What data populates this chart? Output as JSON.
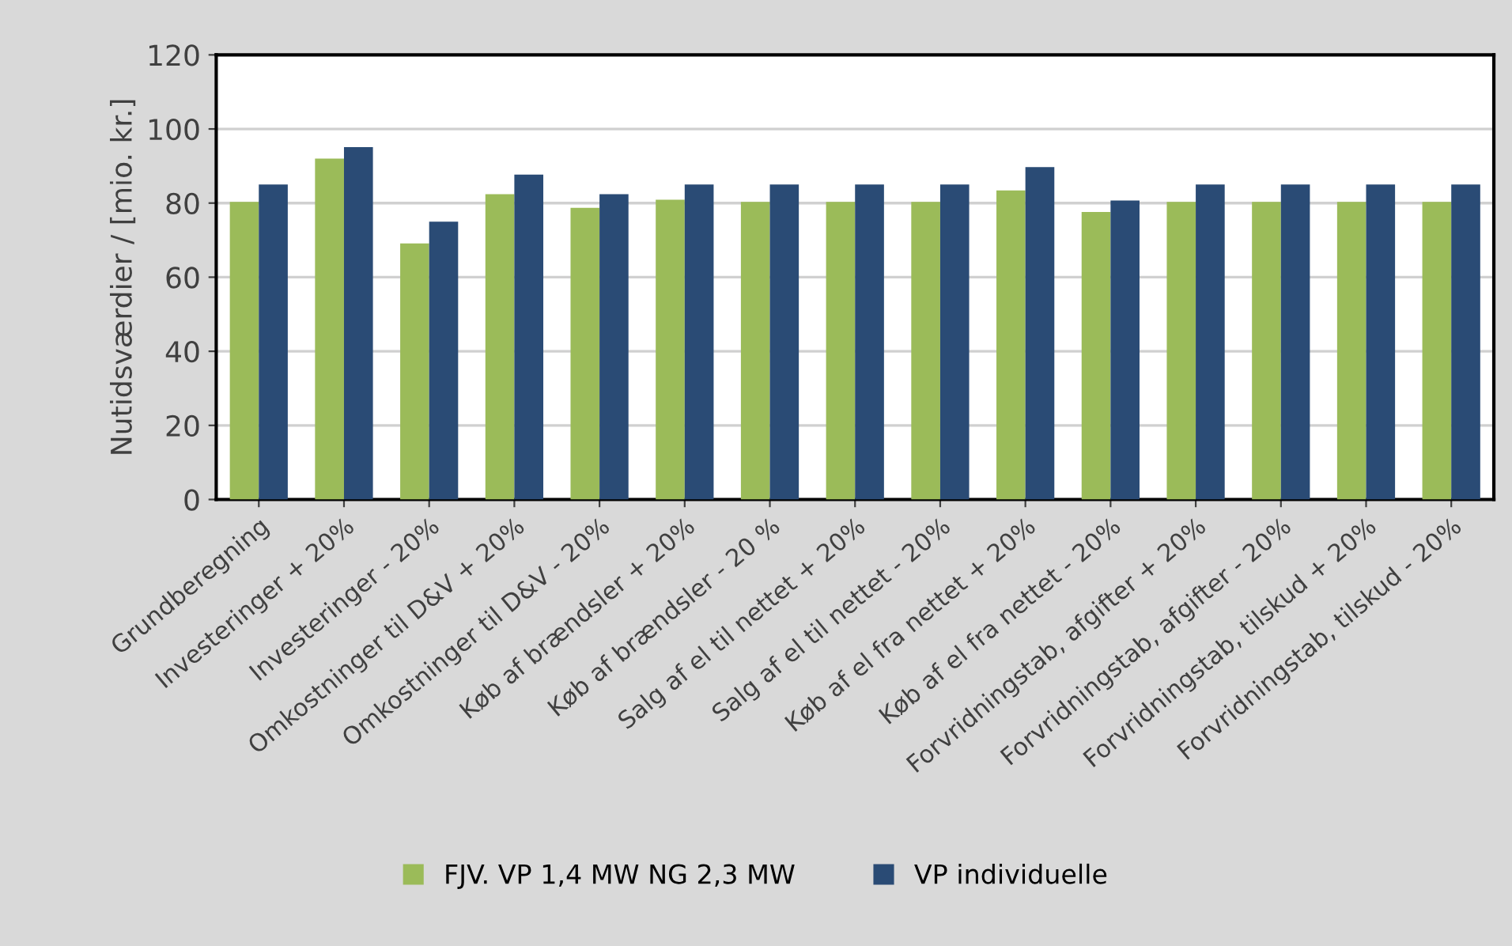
{
  "chart_data": {
    "type": "bar",
    "ylabel": "Nutidsværdier / [mio. kr.]",
    "categories": [
      "Grundberegning",
      "Investeringer + 20%",
      "Investeringer - 20%",
      "Omkostninger til D&V + 20%",
      "Omkostninger til D&V - 20%",
      "Køb af brændsler + 20%",
      "Køb af brændsler - 20 %",
      "Salg af el til nettet + 20%",
      "Salg af el til nettet - 20%",
      "Køb af el fra nettet + 20%",
      "Køb af el fra nettet - 20%",
      "Forvridningstab, afgifter + 20%",
      "Forvridningstab, afgifter - 20%",
      "Forvridningstab, tilskud + 20%",
      "Forvridningstab, tilskud - 20%"
    ],
    "series": [
      {
        "name": "FJV. VP 1,4 MW NG 2,3 MW",
        "color": "#9bbb59",
        "values": [
          80.3,
          92.0,
          69.1,
          82.4,
          78.7,
          80.9,
          80.3,
          80.3,
          80.3,
          83.4,
          77.6,
          80.3,
          80.3,
          80.3,
          80.3
        ]
      },
      {
        "name": "VP individuelle",
        "color": "#2a4b75",
        "values": [
          85,
          95.1,
          75,
          87.7,
          82.4,
          85,
          85,
          85,
          85,
          89.7,
          80.7,
          85,
          85,
          85,
          85
        ]
      }
    ],
    "ylim": [
      0,
      120
    ],
    "yticks": [
      0,
      20,
      40,
      60,
      80,
      100,
      120
    ],
    "grid": "y",
    "legend": "bottom"
  }
}
